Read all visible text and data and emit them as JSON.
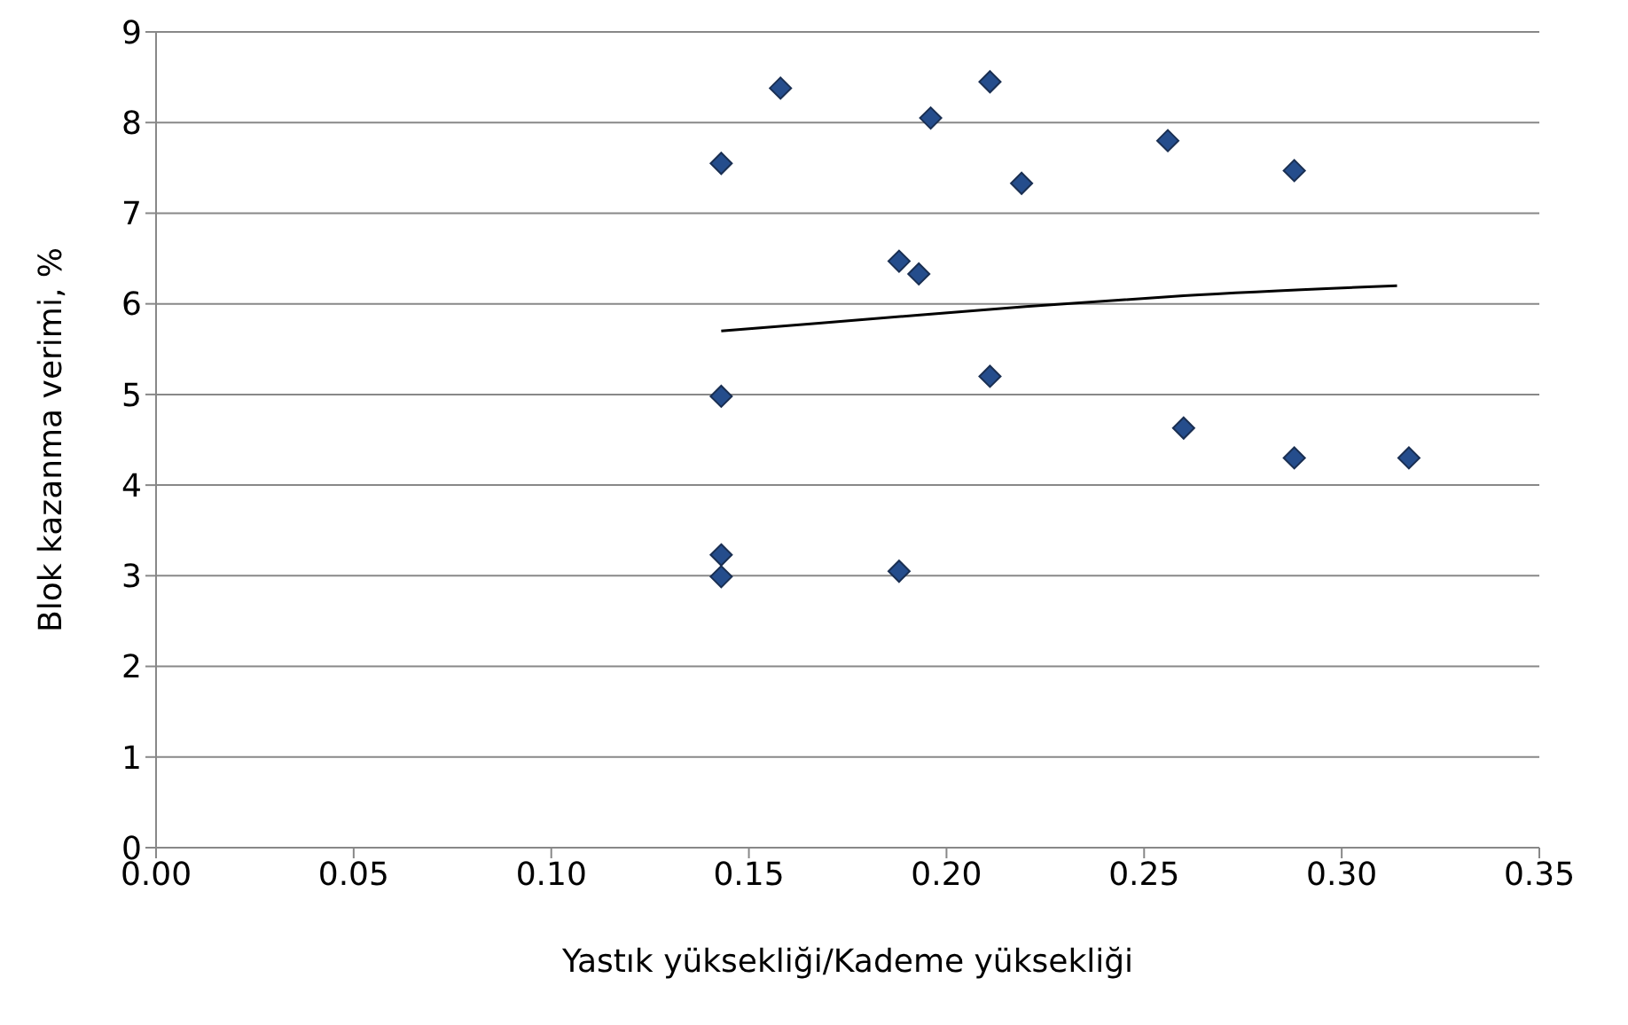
{
  "chart_data": {
    "type": "scatter",
    "xlabel": "Yastık yüksekliği/Kademe yüksekliği",
    "ylabel": "Blok kazanma verimi, %",
    "xlim": [
      0,
      0.35
    ],
    "xticks": [
      {
        "value": 0,
        "label": "0.00"
      },
      {
        "value": 0.05,
        "label": "0.05"
      },
      {
        "value": 0.1,
        "label": "0.10"
      },
      {
        "value": 0.15,
        "label": "0.15"
      },
      {
        "value": 0.2,
        "label": "0.20"
      },
      {
        "value": 0.25,
        "label": "0.25"
      },
      {
        "value": 0.3,
        "label": "0.30"
      },
      {
        "value": 0.35,
        "label": "0.35"
      }
    ],
    "ylim": [
      0,
      9
    ],
    "yticks": [
      0,
      1,
      2,
      3,
      4,
      5,
      6,
      7,
      8,
      9
    ],
    "grid": "y",
    "marker": "diamond",
    "series": [
      {
        "color": "#254d8c",
        "x": [
          0.158,
          0.211,
          0.196,
          0.256,
          0.143,
          0.219,
          0.288,
          0.188,
          0.193,
          0.143,
          0.211,
          0.26,
          0.288,
          0.317,
          0.143,
          0.143,
          0.188
        ],
        "values": [
          8.38,
          8.45,
          8.05,
          7.8,
          7.55,
          7.33,
          7.47,
          6.47,
          6.33,
          4.98,
          5.2,
          4.63,
          4.3,
          4.3,
          3.23,
          2.99,
          3.05
        ]
      },
      {
        "type": "line",
        "color": "#000000",
        "marker": "none",
        "x": [
          0.143,
          0.18,
          0.22,
          0.26,
          0.314
        ],
        "values": [
          5.7,
          5.83,
          5.97,
          6.09,
          6.2
        ]
      }
    ]
  }
}
